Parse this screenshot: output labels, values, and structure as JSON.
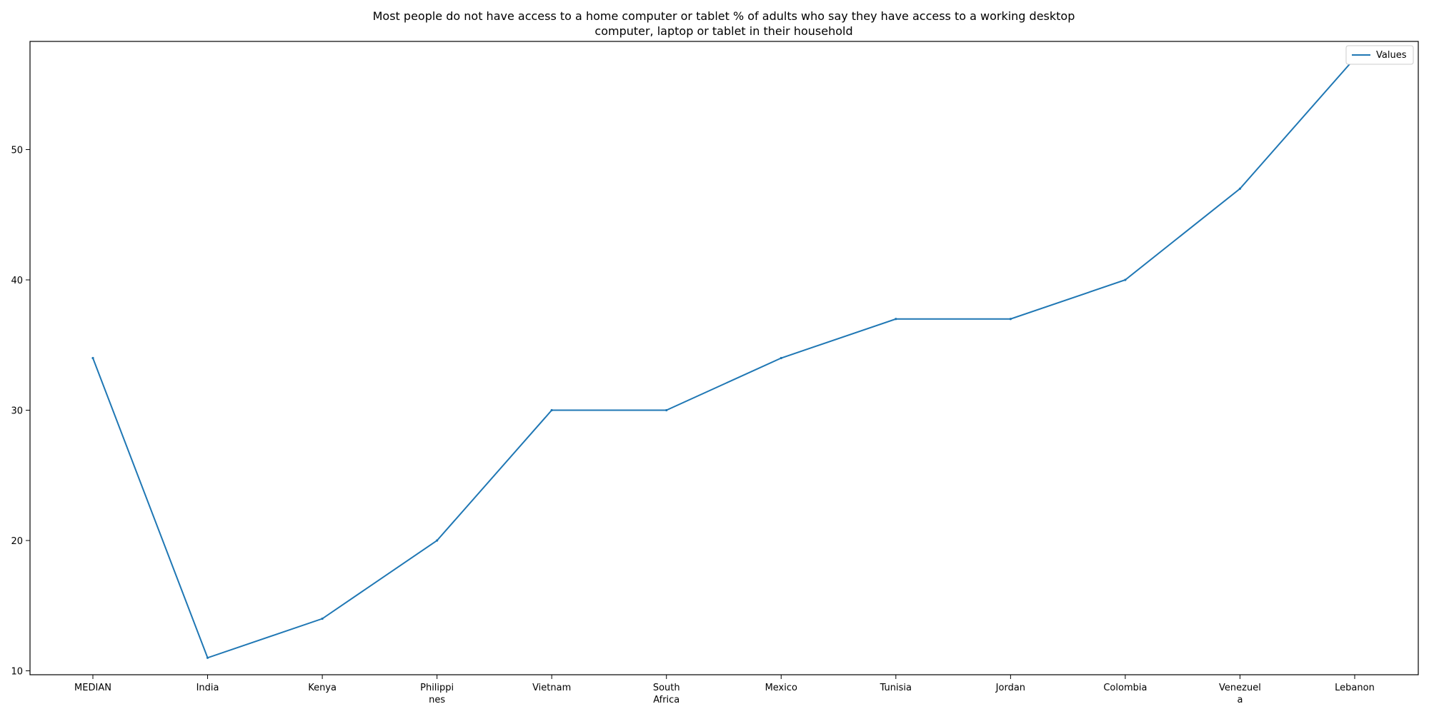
{
  "chart_data": {
    "type": "line",
    "title_lines": [
      "Most people do not have access to a home computer or tablet % of adults who say they have access to a working desktop",
      "computer, laptop or tablet in their household"
    ],
    "xlabel": "",
    "ylabel": "",
    "categories": [
      [
        "MEDIAN"
      ],
      [
        "India"
      ],
      [
        "Kenya"
      ],
      [
        "Philippi",
        "nes"
      ],
      [
        "Vietnam"
      ],
      [
        "South",
        "Africa"
      ],
      [
        "Mexico"
      ],
      [
        "Tunisia"
      ],
      [
        "Jordan"
      ],
      [
        "Colombia"
      ],
      [
        "Venezuel",
        "a"
      ],
      [
        "Lebanon"
      ]
    ],
    "series": [
      {
        "name": "Values",
        "values": [
          34,
          11,
          14,
          20,
          30,
          30,
          34,
          37,
          37,
          40,
          47,
          57
        ],
        "color": "#1f77b4"
      }
    ],
    "ylim": [
      9.7,
      58.3
    ],
    "yticks": [
      10,
      20,
      30,
      40,
      50
    ],
    "legend_position": "top-right",
    "grid": false
  }
}
